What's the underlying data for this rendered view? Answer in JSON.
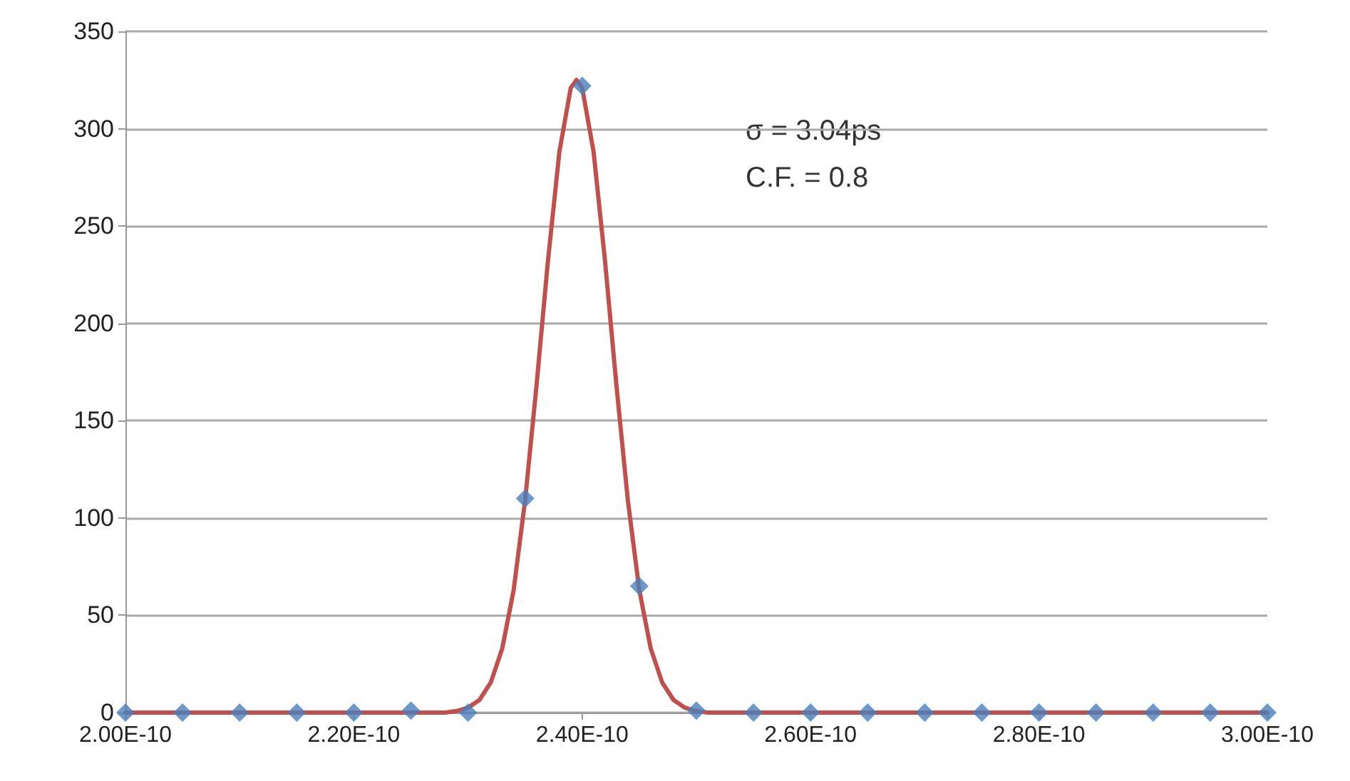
{
  "chart_data": {
    "type": "scatter",
    "xlim": [
      2e-10,
      3e-10
    ],
    "xticks": [
      {
        "value": 2e-10,
        "label": "2.00E-10"
      },
      {
        "value": 2.2e-10,
        "label": "2.20E-10"
      },
      {
        "value": 2.4e-10,
        "label": "2.40E-10"
      },
      {
        "value": 2.6e-10,
        "label": "2.60E-10"
      },
      {
        "value": 2.8e-10,
        "label": "2.80E-10"
      },
      {
        "value": 3e-10,
        "label": "3.00E-10"
      }
    ],
    "ylim": [
      0,
      350
    ],
    "yticks": [
      0,
      50,
      100,
      150,
      200,
      250,
      300,
      350
    ],
    "grid": "y",
    "annotations": [
      "σ = 3.04ps",
      "C.F. = 0.8"
    ],
    "series": [
      {
        "type": "line",
        "color": "#c0504d",
        "marker": "none",
        "line_style": "solid",
        "x": [
          2e-10,
          2.28e-10,
          2.29e-10,
          2.3e-10,
          2.31e-10,
          2.32e-10,
          2.33e-10,
          2.34e-10,
          2.35e-10,
          2.36e-10,
          2.37e-10,
          2.38e-10,
          2.39e-10,
          2.395e-10,
          2.4e-10,
          2.41e-10,
          2.42e-10,
          2.43e-10,
          2.44e-10,
          2.45e-10,
          2.46e-10,
          2.47e-10,
          2.48e-10,
          2.49e-10,
          2.5e-10,
          2.51e-10,
          3e-10
        ],
        "values": [
          0,
          0,
          0.8,
          2.5,
          6.5,
          15.5,
          33,
          63,
          109,
          168,
          232,
          288,
          321,
          325,
          321,
          288,
          232,
          168,
          109,
          63,
          33,
          15.5,
          6.5,
          2.5,
          0.8,
          0,
          0
        ]
      },
      {
        "color": "#4a7ebb",
        "marker": "diamond",
        "x": [
          2e-10,
          2.05e-10,
          2.1e-10,
          2.15e-10,
          2.2e-10,
          2.25e-10,
          2.3e-10,
          2.35e-10,
          2.4e-10,
          2.45e-10,
          2.5e-10,
          2.55e-10,
          2.6e-10,
          2.65e-10,
          2.7e-10,
          2.75e-10,
          2.8e-10,
          2.85e-10,
          2.9e-10,
          2.95e-10,
          3e-10
        ],
        "values": [
          0,
          0,
          0,
          0,
          0,
          1,
          0,
          110,
          322,
          65,
          1,
          0,
          0,
          0,
          0,
          0,
          0,
          0,
          0,
          0,
          0
        ]
      }
    ]
  }
}
